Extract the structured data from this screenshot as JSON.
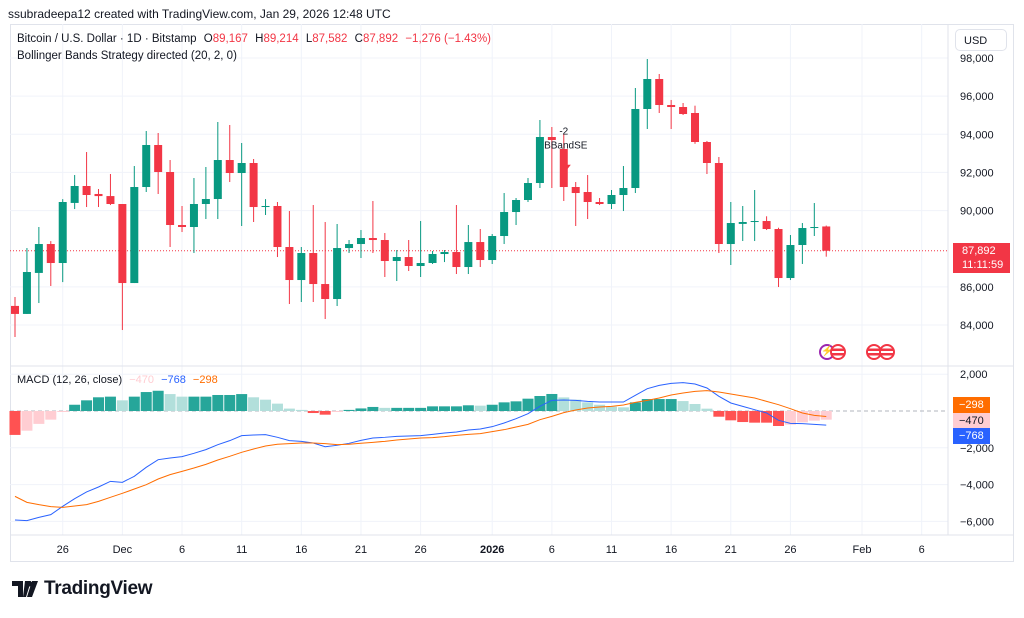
{
  "header": {
    "credit": "ssubradeepa12 created with TradingView.com, Jan 29, 2026 12:48 UTC",
    "symbol": "Bitcoin / U.S. Dollar · 1D · Bitstamp",
    "open_label": "O",
    "open": "89,167",
    "high_label": "H",
    "high": "89,214",
    "low_label": "L",
    "low": "87,582",
    "close_label": "C",
    "close": "87,892",
    "change": "−1,276 (−1.43%)",
    "indicator": "Bollinger Bands Strategy directed (20, 2, 0)",
    "currency": "USD"
  },
  "macd_legend": {
    "title": "MACD (12, 26, close)",
    "histogram": "−470",
    "macd": "−768",
    "signal": "−298"
  },
  "price_label": {
    "price": "87,892",
    "countdown": "11:11:59"
  },
  "macd_labels": {
    "signal": "−298",
    "histogram": "−470",
    "macd": "−768"
  },
  "logo": {
    "text": "TradingView"
  },
  "colors": {
    "up": "#089981",
    "down": "#f23645",
    "macd": "#2962ff",
    "signal": "#ff6d00",
    "hist_up_strong": "#26a69a",
    "hist_up_weak": "#b2dfdb",
    "hist_down_strong": "#ff5252",
    "hist_down_weak": "#ffcdd2"
  },
  "icons": [
    "lightning-event-icon",
    "us-flag-event-icon",
    "us-flag-event-icon",
    "us-flag-event-icon"
  ],
  "chart_data": [
    {
      "type": "candlestick",
      "title": "Bitcoin / U.S. Dollar · 1D · Bitstamp",
      "ylim": [
        82500,
        99000
      ],
      "grid": true,
      "y_ticks": [
        "98,000",
        "96,000",
        "94,000",
        "92,000",
        "90,000",
        "86,000",
        "84,000"
      ],
      "y_tick_values": [
        98000,
        96000,
        94000,
        92000,
        90000,
        86000,
        84000
      ],
      "x_ticks": [
        {
          "date": "2025-11-26",
          "label": "26"
        },
        {
          "date": "2025-12-01",
          "label": "Dec"
        },
        {
          "date": "2025-12-06",
          "label": "6"
        },
        {
          "date": "2025-12-11",
          "label": "11"
        },
        {
          "date": "2025-12-16",
          "label": "16"
        },
        {
          "date": "2025-12-21",
          "label": "21"
        },
        {
          "date": "2025-12-26",
          "label": "26"
        },
        {
          "date": "2026-01-01",
          "label": "2026",
          "bold": true
        },
        {
          "date": "2026-01-06",
          "label": "6"
        },
        {
          "date": "2026-01-11",
          "label": "11"
        },
        {
          "date": "2026-01-16",
          "label": "16"
        },
        {
          "date": "2026-01-21",
          "label": "21"
        },
        {
          "date": "2026-01-26",
          "label": "26"
        },
        {
          "date": "2026-02-01",
          "label": "Feb"
        },
        {
          "date": "2026-02-06",
          "label": "6"
        }
      ],
      "x": [
        "2025-11-22",
        "2025-11-23",
        "2025-11-24",
        "2025-11-25",
        "2025-11-26",
        "2025-11-27",
        "2025-11-28",
        "2025-11-29",
        "2025-11-30",
        "2025-12-01",
        "2025-12-02",
        "2025-12-03",
        "2025-12-04",
        "2025-12-05",
        "2025-12-06",
        "2025-12-07",
        "2025-12-08",
        "2025-12-09",
        "2025-12-10",
        "2025-12-11",
        "2025-12-12",
        "2025-12-13",
        "2025-12-14",
        "2025-12-15",
        "2025-12-16",
        "2025-12-17",
        "2025-12-18",
        "2025-12-19",
        "2025-12-20",
        "2025-12-21",
        "2025-12-22",
        "2025-12-23",
        "2025-12-24",
        "2025-12-25",
        "2025-12-26",
        "2025-12-27",
        "2025-12-28",
        "2025-12-29",
        "2025-12-30",
        "2025-12-31",
        "2026-01-01",
        "2026-01-02",
        "2026-01-03",
        "2026-01-04",
        "2026-01-05",
        "2026-01-06",
        "2026-01-07",
        "2026-01-08",
        "2026-01-09",
        "2026-01-10",
        "2026-01-11",
        "2026-01-12",
        "2026-01-13",
        "2026-01-14",
        "2026-01-15",
        "2026-01-16",
        "2026-01-17",
        "2026-01-18",
        "2026-01-19",
        "2026-01-20",
        "2026-01-21",
        "2026-01-22",
        "2026-01-23",
        "2026-01-24",
        "2026-01-25",
        "2026-01-26",
        "2026-01-27",
        "2026-01-28",
        "2026-01-29"
      ],
      "ohlc": [
        [
          85000,
          85470,
          83370,
          84580
        ],
        [
          84580,
          88036,
          84580,
          86778
        ],
        [
          86730,
          89138,
          85152,
          88246
        ],
        [
          88246,
          88400,
          86044,
          87250
        ],
        [
          87250,
          90600,
          86250,
          90449
        ],
        [
          90400,
          91864,
          90080,
          91288
        ],
        [
          91288,
          93070,
          90186,
          90816
        ],
        [
          90870,
          91130,
          90186,
          90760
        ],
        [
          90760,
          91917,
          90290,
          90344
        ],
        [
          90344,
          90344,
          83736,
          86200
        ],
        [
          86200,
          92336,
          86200,
          91235
        ],
        [
          91235,
          94172,
          90973,
          93438
        ],
        [
          93438,
          94067,
          90868,
          92022
        ],
        [
          92022,
          92651,
          88089,
          89243
        ],
        [
          89243,
          90240,
          88875,
          89138
        ],
        [
          89138,
          91707,
          87774,
          90344
        ],
        [
          90344,
          92284,
          89557,
          90606
        ],
        [
          90606,
          94644,
          89557,
          92651
        ],
        [
          92651,
          94487,
          91497,
          91969
        ],
        [
          91969,
          93543,
          89190,
          92494
        ],
        [
          92494,
          92704,
          89400,
          90186
        ],
        [
          90186,
          90600,
          89767,
          90240
        ],
        [
          90240,
          90450,
          87564,
          88089
        ],
        [
          88089,
          89976,
          85100,
          86358
        ],
        [
          86358,
          88089,
          85205,
          87774
        ],
        [
          87774,
          90291,
          85205,
          86148
        ],
        [
          86148,
          89400,
          84313,
          85362
        ],
        [
          85362,
          89295,
          84995,
          88036
        ],
        [
          88036,
          88456,
          87774,
          88246
        ],
        [
          88246,
          88980,
          87512,
          88561
        ],
        [
          88561,
          90501,
          87774,
          88456
        ],
        [
          88456,
          88823,
          86516,
          87355
        ],
        [
          87355,
          87931,
          86306,
          87564
        ],
        [
          87564,
          88456,
          86830,
          87093
        ],
        [
          87093,
          89452,
          86516,
          87250
        ],
        [
          87250,
          87880,
          87198,
          87722
        ],
        [
          87722,
          87931,
          87300,
          87826
        ],
        [
          87826,
          90291,
          86673,
          87040
        ],
        [
          87040,
          89243,
          86673,
          88350
        ],
        [
          88350,
          89033,
          87040,
          87407
        ],
        [
          87407,
          88770,
          87198,
          88666
        ],
        [
          88666,
          90920,
          88246,
          89924
        ],
        [
          89924,
          90658,
          89243,
          90554
        ],
        [
          90554,
          91707,
          90450,
          91445
        ],
        [
          91445,
          94749,
          91183,
          93857
        ],
        [
          93857,
          94382,
          91183,
          93700
        ],
        [
          93228,
          94000,
          90501,
          91235
        ],
        [
          91235,
          91497,
          89190,
          90920
        ],
        [
          90973,
          91864,
          89557,
          90449
        ],
        [
          90449,
          90658,
          90290,
          90344
        ],
        [
          90344,
          91078,
          90080,
          90816
        ],
        [
          90816,
          92336,
          89976,
          91183
        ],
        [
          91183,
          96427,
          90920,
          95326
        ],
        [
          95326,
          97948,
          94277,
          96899
        ],
        [
          96899,
          97161,
          95116,
          95535
        ],
        [
          95535,
          95800,
          94277,
          95430
        ],
        [
          95430,
          95640,
          95011,
          95063
        ],
        [
          95116,
          95500,
          93500,
          93595
        ],
        [
          93595,
          93650,
          91917,
          92494
        ],
        [
          92494,
          92808,
          87774,
          88246
        ],
        [
          88246,
          90449,
          87145,
          89347
        ],
        [
          89300,
          90240,
          88403,
          89400
        ],
        [
          89400,
          91078,
          88403,
          89452
        ],
        [
          89452,
          89700,
          88980,
          89033
        ],
        [
          89033,
          89100,
          85991,
          86463
        ],
        [
          86463,
          88718,
          86358,
          88194
        ],
        [
          88194,
          89347,
          87200,
          89085
        ],
        [
          89085,
          90396,
          88666,
          89138
        ],
        [
          89167,
          89214,
          87582,
          87892
        ]
      ],
      "last_price": 87892,
      "annotations": [
        {
          "date": "2026-01-07",
          "label": "-2",
          "signal": "BBandSE",
          "direction": "short"
        }
      ]
    },
    {
      "type": "macd",
      "title": "MACD (12, 26, close)",
      "ylim": [
        -6600,
        2300
      ],
      "y_ticks": [
        "2,000",
        "−2,000",
        "−4,000",
        "−6,000"
      ],
      "y_tick_values": [
        2000,
        -2000,
        -4000,
        -6000
      ],
      "series": [
        {
          "name": "MACD",
          "values": [
            -5924,
            -5960,
            -5780,
            -5634,
            -5180,
            -4765,
            -4400,
            -4130,
            -3823,
            -3877,
            -3550,
            -3060,
            -2645,
            -2555,
            -2482,
            -2300,
            -2100,
            -1830,
            -1612,
            -1340,
            -1304,
            -1286,
            -1430,
            -1612,
            -1650,
            -1740,
            -1940,
            -1865,
            -1756,
            -1594,
            -1467,
            -1430,
            -1377,
            -1360,
            -1340,
            -1268,
            -1195,
            -1141,
            -1033,
            -978,
            -852,
            -652,
            -417,
            -145,
            253,
            580,
            598,
            580,
            525,
            489,
            489,
            489,
            852,
            1214,
            1395,
            1504,
            1540,
            1467,
            1250,
            797,
            435,
            253,
            72,
            -109,
            -507,
            -670,
            -688,
            -724,
            -768
          ]
        },
        {
          "name": "Signal",
          "values": [
            -4640,
            -4965,
            -5090,
            -5200,
            -5235,
            -5163,
            -5090,
            -4910,
            -4690,
            -4475,
            -4240,
            -4005,
            -3695,
            -3460,
            -3280,
            -3100,
            -2900,
            -2663,
            -2463,
            -2245,
            -2065,
            -1900,
            -1810,
            -1775,
            -1740,
            -1740,
            -1775,
            -1830,
            -1810,
            -1756,
            -1703,
            -1648,
            -1576,
            -1522,
            -1467,
            -1450,
            -1395,
            -1322,
            -1268,
            -1232,
            -1123,
            -1015,
            -870,
            -725,
            -471,
            -290,
            -90,
            54,
            163,
            217,
            253,
            326,
            471,
            580,
            706,
            870,
            978,
            1069,
            1105,
            1033,
            924,
            815,
            706,
            525,
            344,
            127,
            -109,
            -236,
            -298
          ]
        },
        {
          "name": "Histogram",
          "values": [
            -1300,
            -1070,
            -700,
            -470,
            -30,
            340,
            580,
            745,
            780,
            580,
            780,
            1030,
            1100,
            920,
            780,
            780,
            780,
            870,
            870,
            920,
            745,
            615,
            400,
            130,
            60,
            -110,
            -200,
            -50,
            60,
            140,
            220,
            170,
            170,
            170,
            170,
            253,
            253,
            253,
            310,
            290,
            340,
            470,
            525,
            670,
            815,
            925,
            740,
            615,
            470,
            340,
            235,
            200,
            470,
            650,
            650,
            650,
            540,
            380,
            127,
            -310,
            -507,
            -600,
            -634,
            -634,
            -815,
            -740,
            -615,
            -525,
            -470
          ]
        }
      ]
    }
  ]
}
